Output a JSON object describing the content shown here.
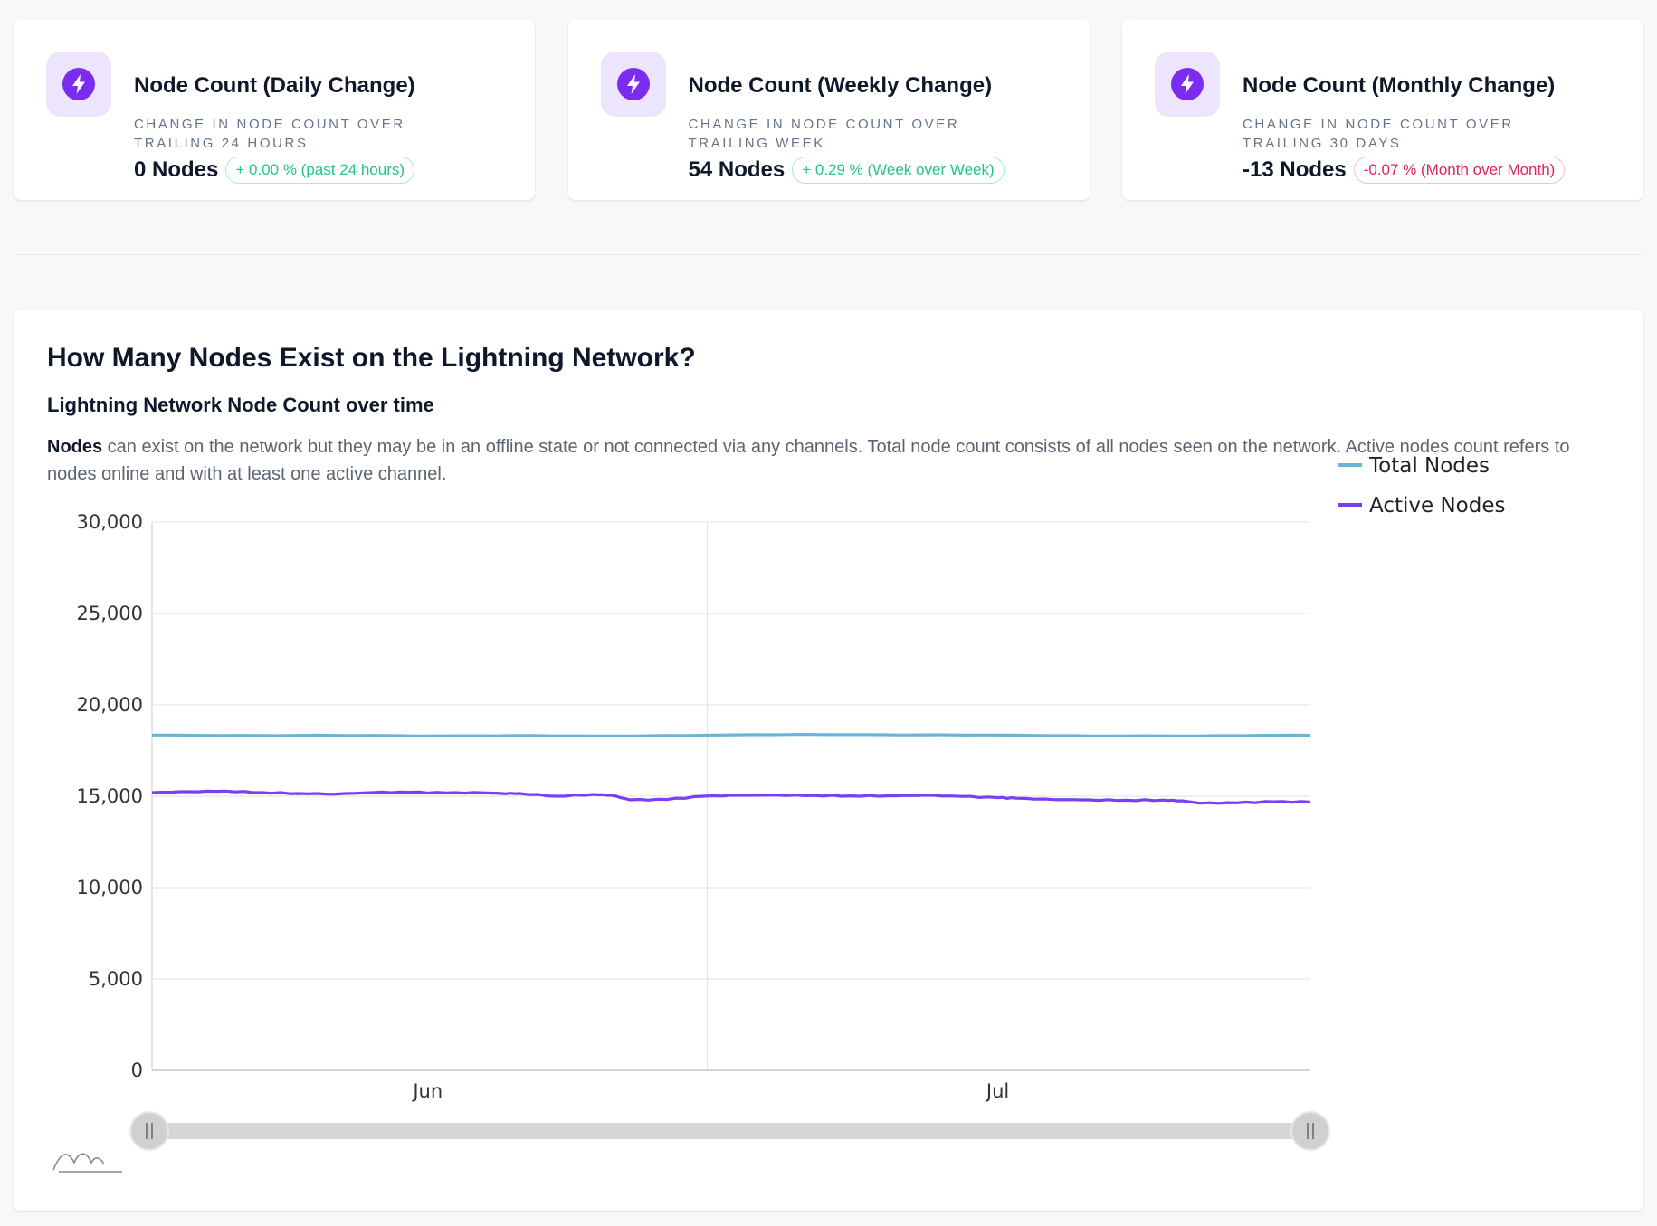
{
  "stats": [
    {
      "title": "Node Count (Daily Change)",
      "description": "Change in node count over trailing 24 hours",
      "value": "0 Nodes",
      "badge": "+ 0.00 % (past 24 hours)",
      "trend": "up",
      "icon": "lightning-icon"
    },
    {
      "title": "Node Count (Weekly Change)",
      "description": "Change in node count over trailing week",
      "value": "54 Nodes",
      "badge": "+ 0.29 % (Week over Week)",
      "trend": "up",
      "icon": "lightning-icon"
    },
    {
      "title": "Node Count (Monthly Change)",
      "description": "Change in node count over trailing 30 days",
      "value": "-13 Nodes",
      "badge": "-0.07 % (Month over Month)",
      "trend": "down",
      "icon": "lightning-icon"
    }
  ],
  "colors": {
    "accent": "#7c2bf0",
    "total_series": "#6bb4d8",
    "active_series": "#7b3ff2",
    "positive": "#22c58b",
    "negative": "#e0245e"
  },
  "chart_section": {
    "heading": "How Many Nodes Exist on the Lightning Network?",
    "subheading": "Lightning Network Node Count over time",
    "description_bold": "Nodes",
    "description": " can exist on the network but they may be in an offline state or not connected via any channels. Total node count consists of all nodes seen on the network. Active nodes count refers to nodes online and with at least one active channel."
  },
  "chart_data": {
    "type": "line",
    "title": "",
    "xlabel": "",
    "ylabel": "",
    "ylim": [
      0,
      30000
    ],
    "yticks": [
      0,
      5000,
      10000,
      15000,
      20000,
      25000,
      30000
    ],
    "ytick_labels": [
      "0",
      "5,000",
      "10,000",
      "15,000",
      "20,000",
      "25,000",
      "30,000"
    ],
    "xlim_days": [
      0,
      63
    ],
    "xticks": [
      {
        "label": "Jun",
        "day": 15
      },
      {
        "label": "Jul",
        "day": 46
      }
    ],
    "grid_days": [
      0,
      30.2,
      61.4
    ],
    "legend_position": "top-right",
    "series": [
      {
        "name": "Total Nodes",
        "color": "#6bb4d8",
        "x": [
          0,
          3,
          6,
          9,
          12,
          15,
          18,
          21,
          24,
          27,
          30,
          33,
          36,
          39,
          42,
          45,
          48,
          51,
          54,
          57,
          60,
          63
        ],
        "values": [
          18350,
          18330,
          18320,
          18340,
          18330,
          18300,
          18310,
          18320,
          18300,
          18310,
          18340,
          18370,
          18380,
          18370,
          18360,
          18350,
          18330,
          18300,
          18310,
          18300,
          18330,
          18340
        ]
      },
      {
        "name": "Active Nodes",
        "color": "#7b3ff2",
        "x": [
          0,
          2,
          4,
          6,
          8,
          10,
          12,
          14,
          16,
          18,
          19,
          20,
          22,
          24,
          25,
          26,
          28,
          30,
          32,
          34,
          36,
          38,
          40,
          42,
          44,
          46,
          47,
          49,
          51,
          53,
          55,
          56,
          57,
          59,
          61,
          63
        ],
        "values": [
          15200,
          15250,
          15280,
          15200,
          15150,
          15120,
          15200,
          15220,
          15180,
          15190,
          15150,
          15150,
          15000,
          15100,
          15050,
          14800,
          14820,
          15000,
          15050,
          15060,
          15040,
          15020,
          15020,
          15050,
          14990,
          14920,
          14890,
          14820,
          14800,
          14780,
          14790,
          14750,
          14620,
          14640,
          14700,
          14680
        ]
      }
    ]
  }
}
